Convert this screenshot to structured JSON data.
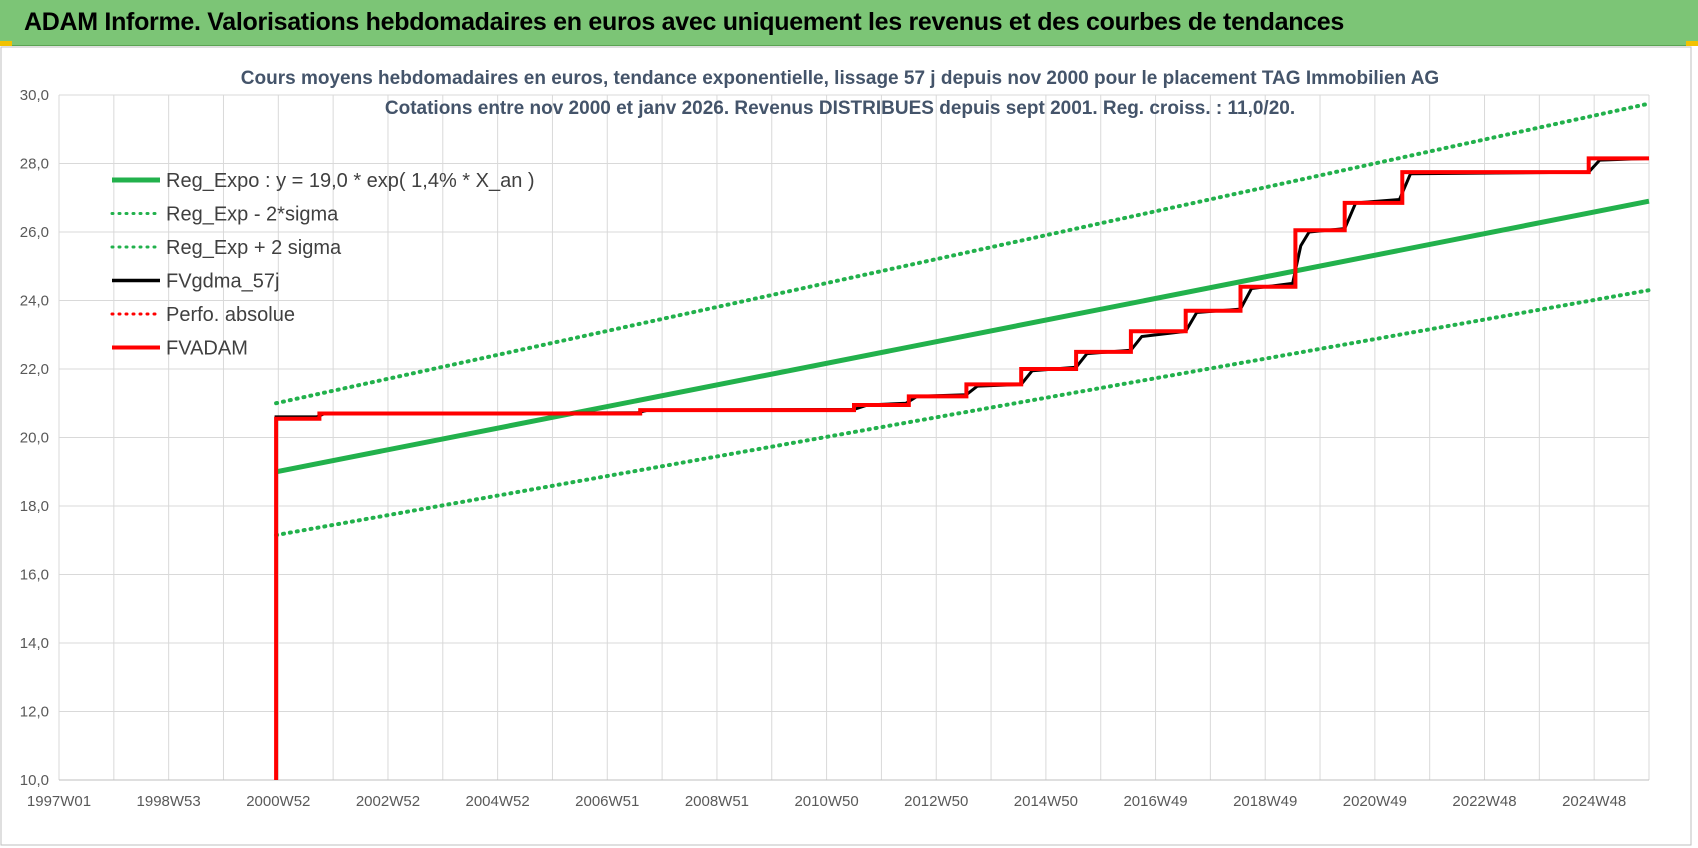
{
  "header": {
    "title": "ADAM Informe. Valorisations hebdomadaires en euros avec uniquement les revenus et des courbes de tendances"
  },
  "chart_data": {
    "type": "line",
    "title": "Cours moyens hebdomadaires en euros, tendance exponentielle, lissage 57 j depuis nov 2000 pour le placement TAG Immobilien AG",
    "subtitle": "Cotations entre nov 2000 et janv 2026. Revenus DISTRIBUES depuis sept 2001. Reg. croiss. : 11,0/20.",
    "xlabel": "",
    "ylabel": "",
    "x_ticks": [
      "1997W01",
      "1998W53",
      "2000W52",
      "2002W52",
      "2004W52",
      "2006W51",
      "2008W51",
      "2010W50",
      "2012W50",
      "2014W50",
      "2016W49",
      "2018W49",
      "2020W49",
      "2022W48",
      "2024W48"
    ],
    "y_ticks": [
      "10,0",
      "12,0",
      "14,0",
      "16,0",
      "18,0",
      "20,0",
      "22,0",
      "24,0",
      "26,0",
      "28,0",
      "30,0"
    ],
    "xlim": [
      1997.0,
      2026.0
    ],
    "ylim": [
      10,
      30
    ],
    "grid": true,
    "legend_position": "top-left",
    "series": [
      {
        "name": "Reg_Expo : y = 19,0 * exp( 1,4% *  X_an )",
        "color": "#22b14c",
        "style": "solid",
        "points": [
          [
            2000.96,
            19.0
          ],
          [
            2026.0,
            26.9
          ]
        ]
      },
      {
        "name": "Reg_Exp - 2*sigma",
        "color": "#22b14c",
        "style": "dotted",
        "points": [
          [
            2000.96,
            17.15
          ],
          [
            2026.0,
            24.3
          ]
        ]
      },
      {
        "name": "Reg_Exp + 2 sigma",
        "color": "#22b14c",
        "style": "dotted",
        "points": [
          [
            2000.96,
            21.0
          ],
          [
            2026.0,
            29.75
          ]
        ]
      },
      {
        "name": "FVgdma_57j",
        "color": "#000000",
        "style": "solid",
        "points": [
          [
            2000.96,
            10.0
          ],
          [
            2000.96,
            20.6
          ],
          [
            2001.7,
            20.6
          ],
          [
            2001.85,
            20.7
          ],
          [
            2007.55,
            20.72
          ],
          [
            2007.75,
            20.8
          ],
          [
            2011.5,
            20.82
          ],
          [
            2011.75,
            20.95
          ],
          [
            2012.45,
            21.0
          ],
          [
            2012.65,
            21.2
          ],
          [
            2013.55,
            21.25
          ],
          [
            2013.75,
            21.5
          ],
          [
            2014.55,
            21.55
          ],
          [
            2014.75,
            21.95
          ],
          [
            2015.55,
            22.05
          ],
          [
            2015.75,
            22.45
          ],
          [
            2016.55,
            22.55
          ],
          [
            2016.75,
            22.95
          ],
          [
            2017.55,
            23.1
          ],
          [
            2017.75,
            23.65
          ],
          [
            2018.55,
            23.75
          ],
          [
            2018.75,
            24.35
          ],
          [
            2019.5,
            24.5
          ],
          [
            2019.65,
            25.6
          ],
          [
            2019.8,
            26.0
          ],
          [
            2020.45,
            26.1
          ],
          [
            2020.65,
            26.85
          ],
          [
            2021.45,
            26.95
          ],
          [
            2021.65,
            27.7
          ],
          [
            2024.9,
            27.75
          ],
          [
            2025.1,
            28.1
          ],
          [
            2026.0,
            28.15
          ]
        ]
      },
      {
        "name": "Perfo. absolue",
        "color": "#ff0000",
        "style": "dotted",
        "points": []
      },
      {
        "name": "FVADAM",
        "color": "#ff0000",
        "style": "solid",
        "points": [
          [
            2000.96,
            10.0
          ],
          [
            2000.96,
            20.55
          ],
          [
            2001.75,
            20.55
          ],
          [
            2001.75,
            20.7
          ],
          [
            2007.6,
            20.7
          ],
          [
            2007.6,
            20.8
          ],
          [
            2011.5,
            20.8
          ],
          [
            2011.5,
            20.95
          ],
          [
            2012.5,
            20.95
          ],
          [
            2012.5,
            21.2
          ],
          [
            2013.55,
            21.2
          ],
          [
            2013.55,
            21.55
          ],
          [
            2014.55,
            21.55
          ],
          [
            2014.55,
            22.0
          ],
          [
            2015.55,
            22.0
          ],
          [
            2015.55,
            22.5
          ],
          [
            2016.55,
            22.5
          ],
          [
            2016.55,
            23.1
          ],
          [
            2017.55,
            23.1
          ],
          [
            2017.55,
            23.7
          ],
          [
            2018.55,
            23.7
          ],
          [
            2018.55,
            24.4
          ],
          [
            2019.55,
            24.4
          ],
          [
            2019.55,
            26.05
          ],
          [
            2020.45,
            26.05
          ],
          [
            2020.45,
            26.85
          ],
          [
            2021.5,
            26.85
          ],
          [
            2021.5,
            27.75
          ],
          [
            2024.9,
            27.75
          ],
          [
            2024.9,
            28.15
          ],
          [
            2026.0,
            28.15
          ]
        ]
      }
    ]
  }
}
